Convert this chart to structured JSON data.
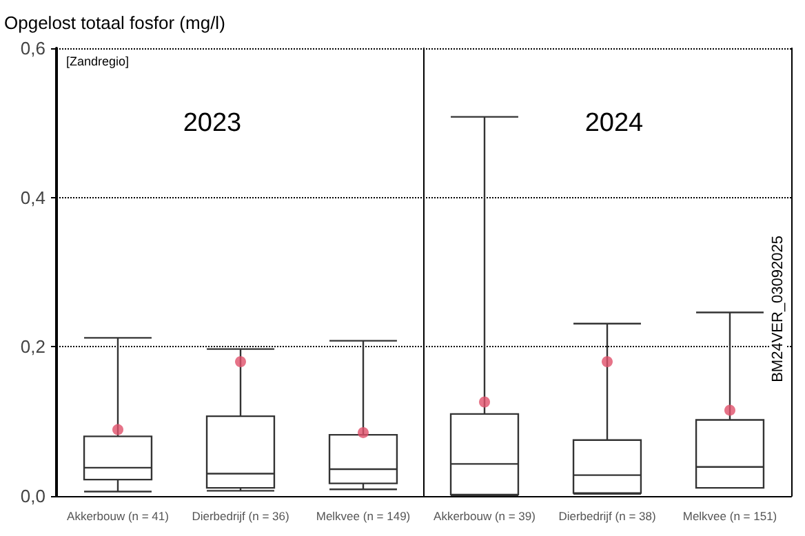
{
  "chart_data": [
    {
      "type": "box",
      "title": "2023",
      "ylabel": "Opgelost totaal fosfor (mg/l)",
      "annotations": [
        "[Zandregio]"
      ],
      "categories": [
        "Akkerbouw (n = 41)",
        "Dierbedrijf (n = 36)",
        "Melkvee (n = 149)"
      ],
      "series": [
        {
          "color": "#333333",
          "boxes": [
            {
              "low": 0.006,
              "q1": 0.022,
              "median": 0.038,
              "q3": 0.08,
              "high": 0.212,
              "mean": 0.089
            },
            {
              "low": 0.007,
              "q1": 0.011,
              "median": 0.03,
              "q3": 0.107,
              "high": 0.197,
              "mean": 0.18
            },
            {
              "low": 0.009,
              "q1": 0.017,
              "median": 0.036,
              "q3": 0.082,
              "high": 0.208,
              "mean": 0.085
            }
          ]
        }
      ],
      "ylim": [
        0,
        0.6
      ],
      "yticks": [
        {
          "value": 0,
          "label": "0,0"
        },
        {
          "value": 0.2,
          "label": "0,2"
        },
        {
          "value": 0.4,
          "label": "0,4"
        },
        {
          "value": 0.6,
          "label": "0,6"
        }
      ],
      "grid": "y"
    },
    {
      "type": "box",
      "title": "2024",
      "annotations": [
        "BM24VER_03092025"
      ],
      "categories": [
        "Akkerbouw (n = 39)",
        "Dierbedrijf (n = 38)",
        "Melkvee (n = 151)"
      ],
      "series": [
        {
          "color": "#333333",
          "boxes": [
            {
              "low": 0.001,
              "q1": 0.002,
              "median": 0.043,
              "q3": 0.11,
              "high": 0.508,
              "mean": 0.126
            },
            {
              "low": 0.003,
              "q1": 0.004,
              "median": 0.028,
              "q3": 0.075,
              "high": 0.231,
              "mean": 0.18
            },
            {
              "low": 0.011,
              "q1": 0.011,
              "median": 0.039,
              "q3": 0.102,
              "high": 0.246,
              "mean": 0.115
            }
          ]
        }
      ],
      "ylim": [
        0,
        0.6
      ],
      "yticks": [
        0,
        0.2,
        0.4,
        0.6
      ],
      "grid": "y",
      "tick_labels": "x"
    }
  ]
}
